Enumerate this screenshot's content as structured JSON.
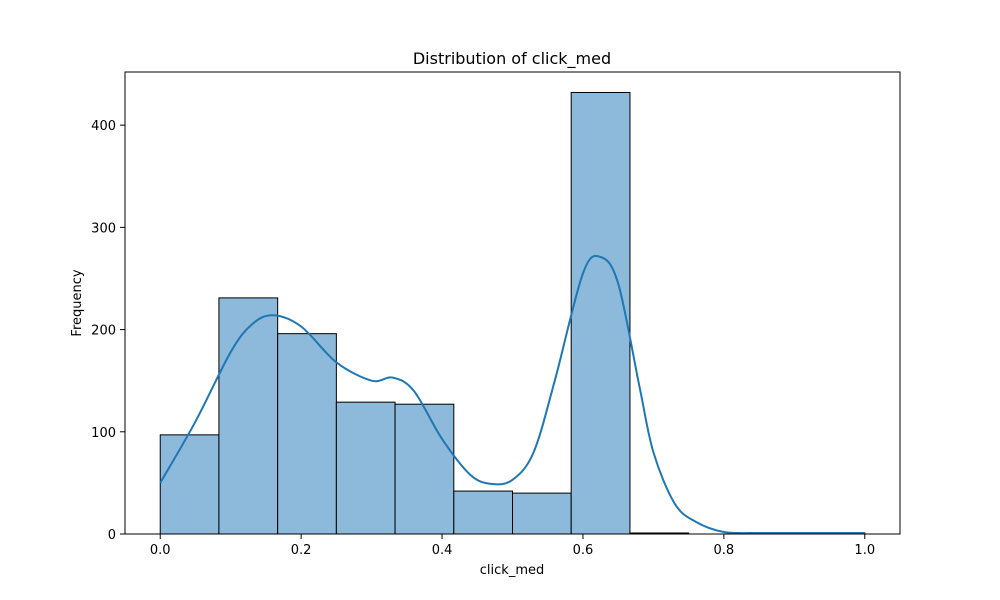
{
  "chart_data": {
    "type": "bar",
    "title": "Distribution of click_med",
    "xlabel": "click_med",
    "ylabel": "Frequency",
    "xlim": [
      -0.05,
      1.05
    ],
    "ylim": [
      0,
      452
    ],
    "xticks": [
      0.0,
      0.2,
      0.4,
      0.6,
      0.8,
      1.0
    ],
    "xtick_labels": [
      "0.0",
      "0.2",
      "0.4",
      "0.6",
      "0.8",
      "1.0"
    ],
    "yticks": [
      0,
      100,
      200,
      300,
      400
    ],
    "ytick_labels": [
      "0",
      "100",
      "200",
      "300",
      "400"
    ],
    "grid": false,
    "bins": [
      {
        "x0": 0.0,
        "x1": 0.0833,
        "count": 97
      },
      {
        "x0": 0.0833,
        "x1": 0.1667,
        "count": 231
      },
      {
        "x0": 0.1667,
        "x1": 0.25,
        "count": 196
      },
      {
        "x0": 0.25,
        "x1": 0.3333,
        "count": 129
      },
      {
        "x0": 0.3333,
        "x1": 0.4167,
        "count": 127
      },
      {
        "x0": 0.4167,
        "x1": 0.5,
        "count": 42
      },
      {
        "x0": 0.5,
        "x1": 0.5833,
        "count": 40
      },
      {
        "x0": 0.5833,
        "x1": 0.6667,
        "count": 432
      },
      {
        "x0": 0.6667,
        "x1": 0.75,
        "count": 1
      },
      {
        "x0": 0.75,
        "x1": 0.8333,
        "count": 0
      },
      {
        "x0": 0.8333,
        "x1": 0.9167,
        "count": 0
      },
      {
        "x0": 0.9167,
        "x1": 1.0,
        "count": 1
      }
    ],
    "kde": {
      "x": [
        0.0,
        0.05,
        0.1,
        0.13,
        0.16,
        0.2,
        0.25,
        0.3,
        0.33,
        0.36,
        0.4,
        0.44,
        0.47,
        0.5,
        0.53,
        0.56,
        0.6,
        0.625,
        0.65,
        0.68,
        0.7,
        0.73,
        0.76,
        0.8,
        0.85,
        0.9,
        0.95,
        1.0
      ],
      "y": [
        50,
        110,
        178,
        205,
        214,
        203,
        168,
        150,
        153,
        140,
        93,
        58,
        49,
        53,
        80,
        150,
        255,
        271,
        245,
        145,
        80,
        30,
        12,
        2,
        1,
        1,
        1,
        1
      ]
    },
    "colors": {
      "bar_fill": "#8db9da",
      "bar_edge": "#000000",
      "kde_line": "#1f77b4"
    }
  }
}
